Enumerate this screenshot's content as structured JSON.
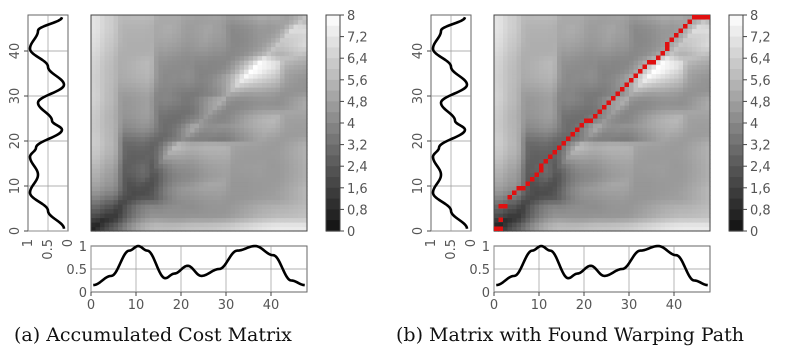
{
  "chart_data": [
    {
      "panel": "a",
      "type": "heatmap",
      "caption": "(a) Accumulated Cost Matrix",
      "matrix_size": [
        48,
        48
      ],
      "axis_range": [
        0,
        48
      ],
      "colorscale": {
        "min": 0,
        "max": 8,
        "low_color": "#111111",
        "high_color": "#ffffff",
        "ticks": [
          "8",
          "7,2",
          "6,4",
          "5,6",
          "4,8",
          "4",
          "3,2",
          "2,4",
          "1,6",
          "0,8",
          "0"
        ]
      },
      "x_ticks": [
        "0",
        "10",
        "20",
        "30",
        "40"
      ],
      "x_series_ylim": [
        0,
        1
      ],
      "x_series_yticks": [
        "0",
        "0.5",
        "1"
      ],
      "y_ticks": [
        "0",
        "10",
        "20",
        "30",
        "40"
      ],
      "y_series_xticks": [
        "1",
        "0.5",
        "0"
      ],
      "series_x": {
        "index": [
          0,
          4,
          8,
          10,
          12,
          16,
          18,
          21,
          24,
          28,
          32,
          36,
          40,
          44,
          47
        ],
        "values": [
          0.15,
          0.35,
          0.9,
          1.0,
          0.9,
          0.3,
          0.4,
          0.57,
          0.35,
          0.5,
          0.9,
          1.0,
          0.8,
          0.25,
          0.15
        ]
      },
      "series_y": {
        "index": [
          0,
          4,
          8,
          12,
          16,
          18,
          22,
          24,
          28,
          32,
          36,
          40,
          44,
          47
        ],
        "values": [
          0.1,
          0.5,
          0.95,
          0.75,
          0.95,
          0.8,
          0.15,
          0.4,
          0.75,
          0.1,
          0.5,
          0.95,
          0.75,
          0.15
        ]
      },
      "warping_path": null
    },
    {
      "panel": "b",
      "type": "heatmap",
      "caption": "(b) Matrix with Found Warping Path",
      "matrix_size": [
        48,
        48
      ],
      "axis_range": [
        0,
        48
      ],
      "colorscale": {
        "min": 0,
        "max": 8,
        "low_color": "#111111",
        "high_color": "#ffffff",
        "ticks": [
          "8",
          "7,2",
          "6,4",
          "5,6",
          "4,8",
          "4",
          "3,2",
          "2,4",
          "1,6",
          "0,8",
          "0"
        ]
      },
      "x_ticks": [
        "0",
        "10",
        "20",
        "30",
        "40"
      ],
      "x_series_ylim": [
        0,
        1
      ],
      "x_series_yticks": [
        "0",
        "0.5",
        "1"
      ],
      "y_ticks": [
        "0",
        "10",
        "20",
        "30",
        "40"
      ],
      "y_series_xticks": [
        "1",
        "0.5",
        "0"
      ],
      "series_x": {
        "index": [
          0,
          4,
          8,
          10,
          12,
          16,
          18,
          21,
          24,
          28,
          32,
          36,
          40,
          44,
          47
        ],
        "values": [
          0.15,
          0.35,
          0.9,
          1.0,
          0.9,
          0.3,
          0.4,
          0.57,
          0.35,
          0.5,
          0.9,
          1.0,
          0.8,
          0.25,
          0.15
        ]
      },
      "series_y": {
        "index": [
          0,
          4,
          8,
          12,
          16,
          18,
          22,
          24,
          28,
          32,
          36,
          40,
          44,
          47
        ],
        "values": [
          0.1,
          0.5,
          0.95,
          0.75,
          0.95,
          0.8,
          0.15,
          0.4,
          0.75,
          0.1,
          0.5,
          0.95,
          0.75,
          0.15
        ]
      },
      "warping_path": {
        "color": "#e01010",
        "points": [
          [
            0,
            0
          ],
          [
            1,
            0
          ],
          [
            1,
            2
          ],
          [
            1,
            5
          ],
          [
            2,
            5
          ],
          [
            3,
            7
          ],
          [
            4,
            8
          ],
          [
            5,
            9
          ],
          [
            6,
            9
          ],
          [
            7,
            10
          ],
          [
            8,
            11
          ],
          [
            9,
            12
          ],
          [
            10,
            13
          ],
          [
            10,
            14
          ],
          [
            11,
            15
          ],
          [
            12,
            16
          ],
          [
            13,
            17
          ],
          [
            14,
            18
          ],
          [
            15,
            19
          ],
          [
            16,
            20
          ],
          [
            17,
            21
          ],
          [
            18,
            22
          ],
          [
            19,
            23
          ],
          [
            20,
            24
          ],
          [
            21,
            24
          ],
          [
            22,
            25
          ],
          [
            23,
            26
          ],
          [
            24,
            27
          ],
          [
            25,
            28
          ],
          [
            26,
            29
          ],
          [
            27,
            30
          ],
          [
            28,
            31
          ],
          [
            29,
            32
          ],
          [
            30,
            33
          ],
          [
            31,
            34
          ],
          [
            32,
            35
          ],
          [
            33,
            36
          ],
          [
            34,
            37
          ],
          [
            35,
            37
          ],
          [
            36,
            38
          ],
          [
            37,
            39
          ],
          [
            38,
            40
          ],
          [
            38,
            41
          ],
          [
            39,
            42
          ],
          [
            40,
            43
          ],
          [
            41,
            44
          ],
          [
            42,
            45
          ],
          [
            43,
            46
          ],
          [
            44,
            47
          ],
          [
            45,
            47
          ],
          [
            46,
            47
          ],
          [
            47,
            47
          ]
        ]
      }
    }
  ],
  "captions": {
    "a": "(a) Accumulated Cost Matrix",
    "b": "(b) Matrix with Found Warping Path"
  }
}
